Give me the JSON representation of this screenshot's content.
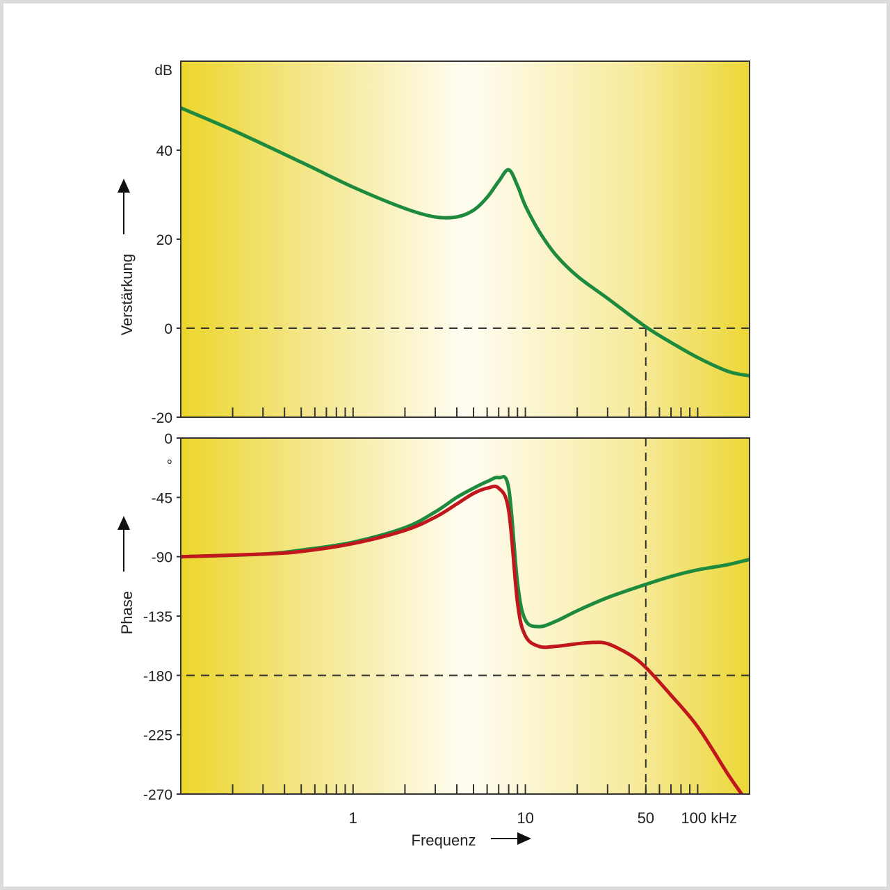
{
  "chart_data": [
    {
      "type": "line",
      "ylabel": "Verstärkung",
      "yunit": "dB",
      "ylim": [
        -20,
        60
      ],
      "yticks": [
        {
          "v": 40,
          "label": "40"
        },
        {
          "v": 20,
          "label": "20"
        },
        {
          "v": 0,
          "label": "0"
        },
        {
          "v": -20,
          "label": "-20"
        }
      ],
      "xlim_khz": [
        0.1,
        200
      ],
      "xscale": "log",
      "reference_lines": [
        {
          "axis": "y",
          "value": 0
        },
        {
          "axis": "x",
          "value": 50
        }
      ],
      "series": [
        {
          "color": "#1e8a3e",
          "x": [
            0.1,
            0.2,
            0.5,
            1,
            2,
            3,
            4,
            5,
            6,
            7,
            8,
            9,
            10,
            12,
            15,
            20,
            30,
            50,
            70,
            100,
            150,
            200
          ],
          "y": [
            49.5,
            44.5,
            37.3,
            31.7,
            26.9,
            25.0,
            25.0,
            26.5,
            29.4,
            33.0,
            35.6,
            32.0,
            27.5,
            21.8,
            16.5,
            11.7,
            6.7,
            0.3,
            -3.2,
            -6.6,
            -9.7,
            -10.7
          ]
        }
      ]
    },
    {
      "type": "line",
      "ylabel": "Phase",
      "yunit": "°",
      "ylim": [
        -270,
        0
      ],
      "yticks": [
        {
          "v": 0,
          "label": "0"
        },
        {
          "v": -45,
          "label": "-45"
        },
        {
          "v": -90,
          "label": "-90"
        },
        {
          "v": -135,
          "label": "-135"
        },
        {
          "v": -180,
          "label": "-180"
        },
        {
          "v": -225,
          "label": "-225"
        },
        {
          "v": -270,
          "label": "-270"
        }
      ],
      "xlabel": "Frequenz",
      "xticks": [
        {
          "v": 1,
          "label": "1"
        },
        {
          "v": 10,
          "label": "10"
        },
        {
          "v": 50,
          "label": "50"
        },
        {
          "v": 100,
          "label": "100 kHz"
        }
      ],
      "xlim_khz": [
        0.1,
        200
      ],
      "xscale": "log",
      "reference_lines": [
        {
          "axis": "y",
          "value": -180
        },
        {
          "axis": "x",
          "value": 50
        }
      ],
      "series": [
        {
          "color": "#1e8a3e",
          "x": [
            0.1,
            0.3,
            0.5,
            1,
            2,
            3,
            4,
            5,
            6,
            7,
            8,
            9,
            10,
            12,
            15,
            20,
            30,
            50,
            70,
            100,
            150,
            200
          ],
          "y": [
            -90,
            -88,
            -85,
            -79,
            -68,
            -56,
            -45,
            -38,
            -33,
            -30,
            -38,
            -110,
            -138,
            -143,
            -139,
            -131,
            -121,
            -111,
            -105,
            -100,
            -96,
            -92
          ]
        },
        {
          "color": "#c0161c",
          "x": [
            0.1,
            0.3,
            0.5,
            1,
            2,
            3,
            4,
            5,
            6,
            7,
            8,
            9,
            10,
            12,
            15,
            20,
            25,
            30,
            40,
            50,
            70,
            100,
            150,
            180
          ],
          "y": [
            -90,
            -88,
            -86,
            -80,
            -70,
            -60,
            -50,
            -42,
            -38,
            -38,
            -55,
            -125,
            -150,
            -158,
            -158,
            -156,
            -155,
            -156,
            -164,
            -174,
            -195,
            -219,
            -255,
            -270
          ]
        }
      ]
    }
  ]
}
